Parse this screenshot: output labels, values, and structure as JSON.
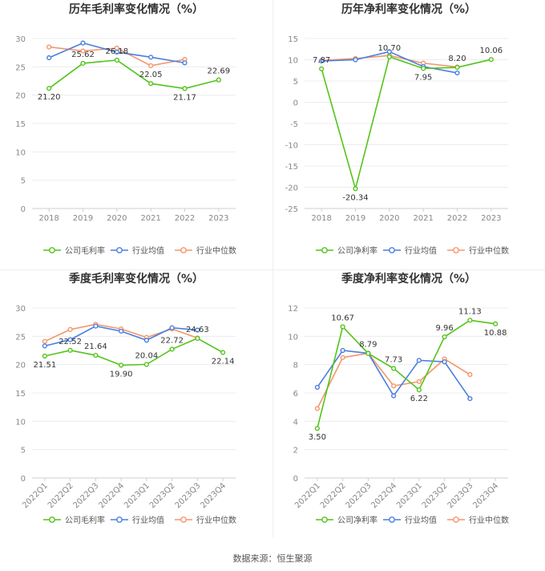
{
  "footer": "数据来源：恒生聚源",
  "colors": {
    "company": "#52c41a",
    "avg": "#4a7fe0",
    "median": "#f5956b",
    "grid": "#ececec",
    "axis": "#cfcfcf",
    "tick": "#888888",
    "title": "#333333",
    "label": "#333333"
  },
  "chart_data": [
    {
      "type": "line",
      "title": "历年毛利率变化情况（%）",
      "categories": [
        "2018",
        "2019",
        "2020",
        "2021",
        "2022",
        "2023"
      ],
      "ylim": [
        0,
        30
      ],
      "yticks": [
        0,
        5,
        10,
        15,
        20,
        25,
        30
      ],
      "series": [
        {
          "name": "公司毛利率",
          "key": "company",
          "values": [
            21.2,
            25.62,
            26.18,
            22.05,
            21.17,
            22.69
          ],
          "labels": [
            "21.20",
            "25.62",
            "26.18",
            "22.05",
            "21.17",
            "22.69"
          ]
        },
        {
          "name": "行业均值",
          "key": "avg",
          "values": [
            26.6,
            29.2,
            27.6,
            26.7,
            25.7,
            null
          ]
        },
        {
          "name": "行业中位数",
          "key": "median",
          "values": [
            28.5,
            27.8,
            28.3,
            25.2,
            26.3,
            null
          ]
        }
      ]
    },
    {
      "type": "line",
      "title": "历年净利率变化情况（%）",
      "categories": [
        "2018",
        "2019",
        "2020",
        "2021",
        "2022",
        "2023"
      ],
      "ylim": [
        -25,
        15
      ],
      "yticks": [
        -25,
        -20,
        -15,
        -10,
        -5,
        0,
        5,
        10,
        15
      ],
      "series": [
        {
          "name": "公司净利率",
          "key": "company",
          "values": [
            7.87,
            -20.34,
            10.7,
            7.95,
            8.2,
            10.06
          ],
          "labels": [
            "7.87",
            "-20.34",
            "10.70",
            "7.95",
            "8.20",
            "10.06"
          ]
        },
        {
          "name": "行业均值",
          "key": "avg",
          "values": [
            9.7,
            10.0,
            11.9,
            8.4,
            6.9,
            null
          ]
        },
        {
          "name": "行业中位数",
          "key": "median",
          "values": [
            9.8,
            10.3,
            11.0,
            9.2,
            8.3,
            null
          ]
        }
      ]
    },
    {
      "type": "line",
      "title": "季度毛利率变化情况（%）",
      "categories": [
        "2022Q1",
        "2022Q2",
        "2022Q3",
        "2022Q4",
        "2023Q1",
        "2023Q2",
        "2023Q3",
        "2023Q4"
      ],
      "ylim": [
        0,
        30
      ],
      "yticks": [
        0,
        5,
        10,
        15,
        20,
        25,
        30
      ],
      "series": [
        {
          "name": "公司毛利率",
          "key": "company",
          "values": [
            21.51,
            22.52,
            21.64,
            19.9,
            20.04,
            22.72,
            24.63,
            22.14
          ],
          "labels": [
            "21.51",
            "22.52",
            "21.64",
            "19.90",
            "20.04",
            "22.72",
            "24.63",
            "22.14"
          ]
        },
        {
          "name": "行业均值",
          "key": "avg",
          "values": [
            23.3,
            24.4,
            26.8,
            25.9,
            24.3,
            26.5,
            26.1,
            null
          ]
        },
        {
          "name": "行业中位数",
          "key": "median",
          "values": [
            24.1,
            26.2,
            27.1,
            26.3,
            24.8,
            26.3,
            24.7,
            null
          ]
        }
      ]
    },
    {
      "type": "line",
      "title": "季度净利率变化情况（%）",
      "categories": [
        "2022Q1",
        "2022Q2",
        "2022Q3",
        "2022Q4",
        "2023Q1",
        "2023Q2",
        "2023Q3",
        "2023Q4"
      ],
      "ylim": [
        0,
        12
      ],
      "yticks": [
        0,
        2,
        4,
        6,
        8,
        10,
        12
      ],
      "series": [
        {
          "name": "公司净利率",
          "key": "company",
          "values": [
            3.5,
            10.67,
            8.79,
            7.73,
            6.22,
            9.96,
            11.13,
            10.88
          ],
          "labels": [
            "3.50",
            "10.67",
            "8.79",
            "7.73",
            "6.22",
            "9.96",
            "11.13",
            "10.88"
          ]
        },
        {
          "name": "行业均值",
          "key": "avg",
          "values": [
            6.4,
            9.0,
            8.8,
            5.8,
            8.3,
            8.2,
            5.6,
            null
          ]
        },
        {
          "name": "行业中位数",
          "key": "median",
          "values": [
            4.9,
            8.5,
            8.8,
            6.5,
            6.8,
            8.4,
            7.3,
            null
          ]
        }
      ]
    }
  ]
}
